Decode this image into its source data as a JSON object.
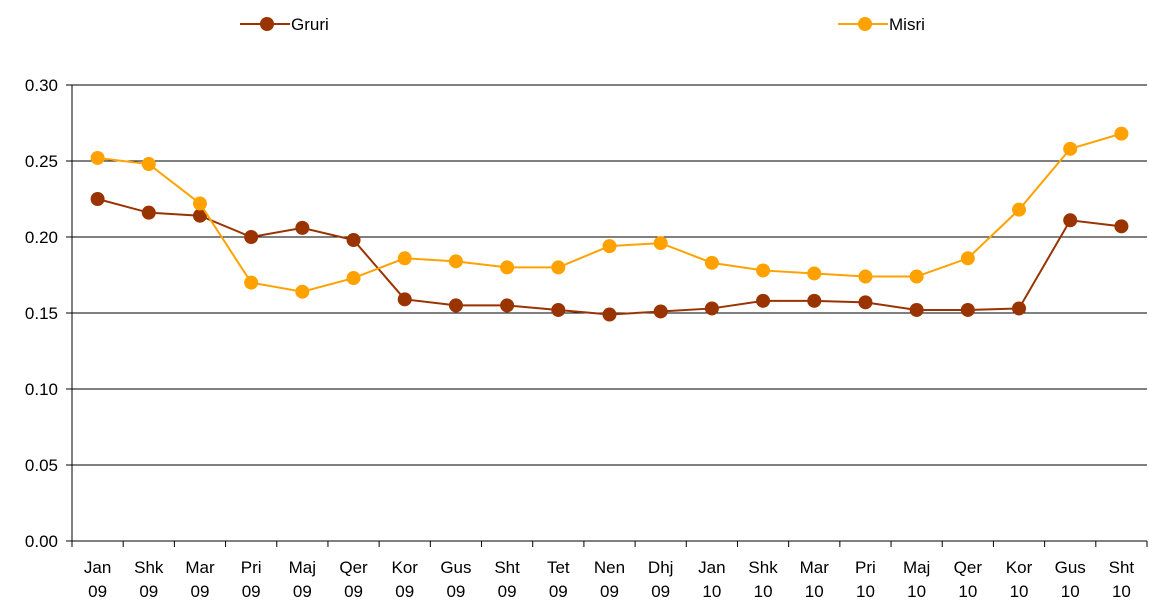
{
  "chart_data": {
    "type": "line",
    "categories": [
      "Jan 09",
      "Shk 09",
      "Mar 09",
      "Pri 09",
      "Maj 09",
      "Qer 09",
      "Kor 09",
      "Gus 09",
      "Sht 09",
      "Tet 09",
      "Nen 09",
      "Dhj 09",
      "Jan 10",
      "Shk 10",
      "Mar 10",
      "Pri 10",
      "Maj 10",
      "Qer 10",
      "Kor 10",
      "Gus 10",
      "Sht 10"
    ],
    "series": [
      {
        "name": "Gruri",
        "color": "#993300",
        "values": [
          0.225,
          0.216,
          0.214,
          0.2,
          0.206,
          0.198,
          0.159,
          0.155,
          0.155,
          0.152,
          0.149,
          0.151,
          0.153,
          0.158,
          0.158,
          0.157,
          0.152,
          0.152,
          0.153,
          0.211,
          0.207
        ]
      },
      {
        "name": "Misri",
        "color": "#ffa200",
        "values": [
          0.252,
          0.248,
          0.222,
          0.17,
          0.164,
          0.173,
          0.186,
          0.184,
          0.18,
          0.18,
          0.194,
          0.196,
          0.183,
          0.178,
          0.176,
          0.174,
          0.174,
          0.186,
          0.218,
          0.258,
          0.268
        ]
      }
    ],
    "ylim": [
      0,
      0.3
    ],
    "yticks": [
      {
        "value": 0,
        "label": "0.00"
      },
      {
        "value": 0.05,
        "label": "0.05"
      },
      {
        "value": 0.1,
        "label": "0.10"
      },
      {
        "value": 0.15,
        "label": "0.15"
      },
      {
        "value": 0.2,
        "label": "0.20"
      },
      {
        "value": 0.25,
        "label": "0.25"
      },
      {
        "value": 0.3,
        "label": "0.30"
      }
    ],
    "grid": true
  }
}
